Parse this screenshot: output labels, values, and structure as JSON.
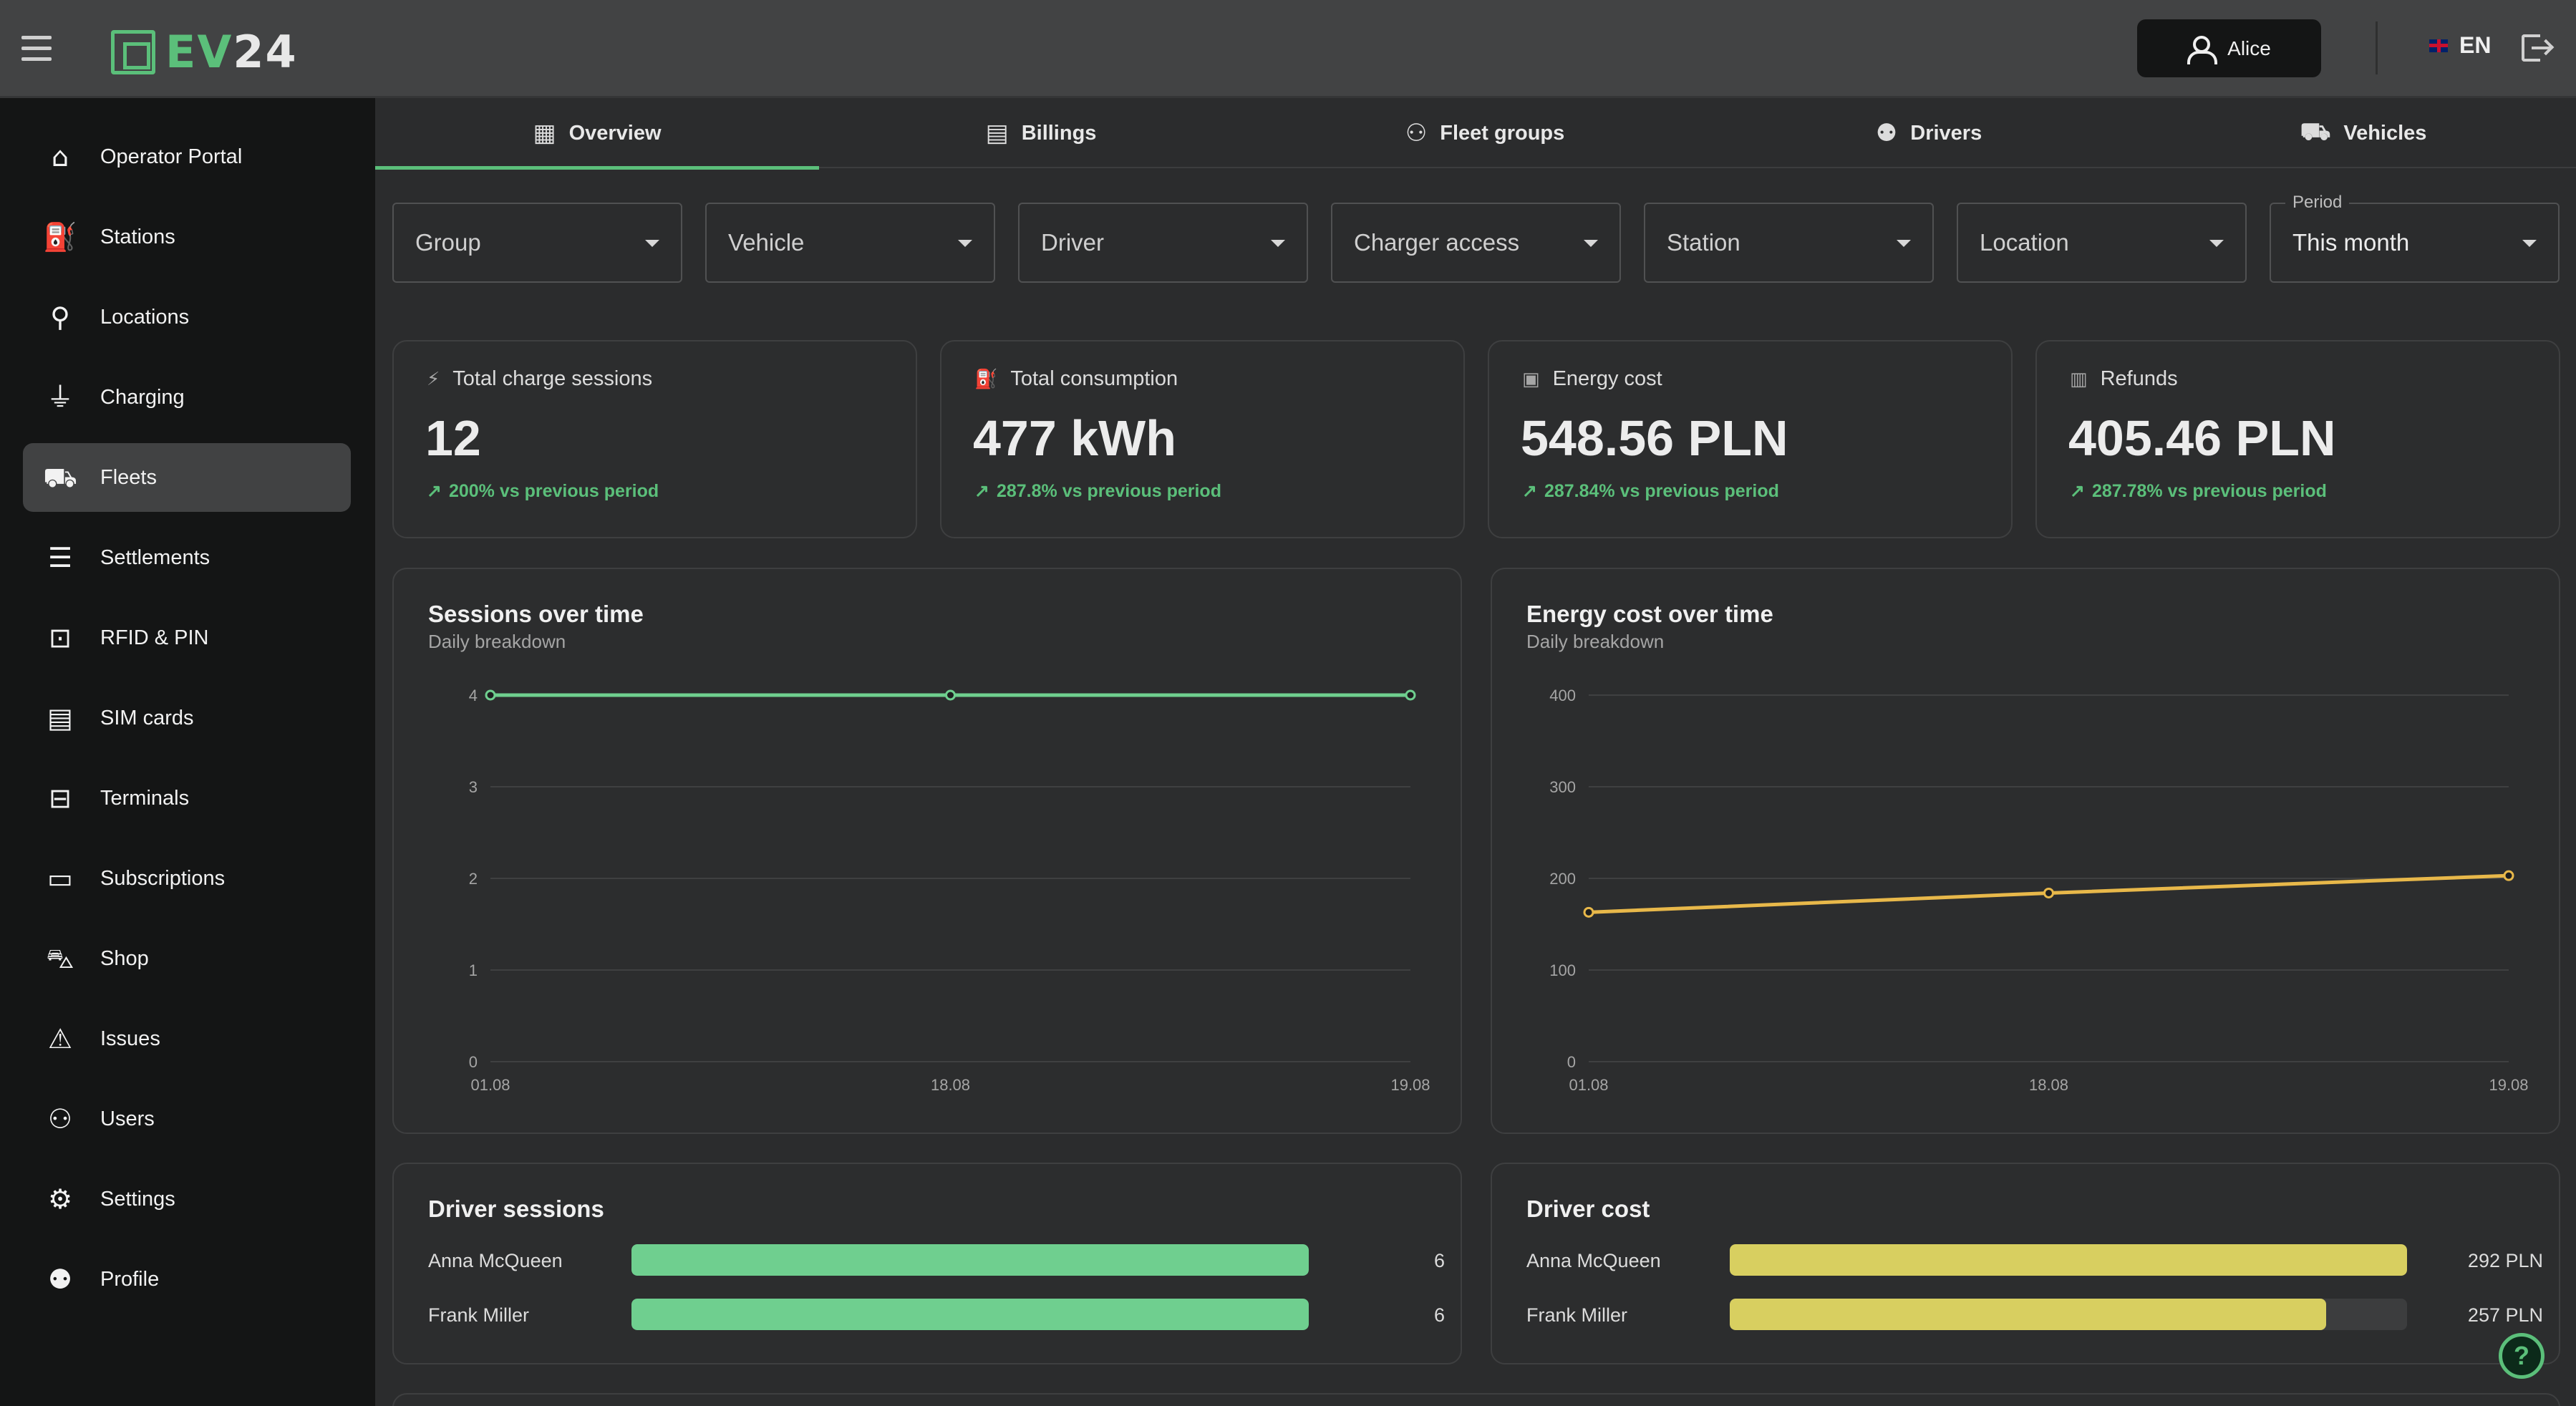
{
  "app": {
    "logo_prefix": "EV",
    "logo_suffix": "24"
  },
  "header": {
    "user_name": "Alice",
    "language": "EN"
  },
  "sidebar": {
    "items": [
      {
        "label": "Operator Portal",
        "icon": "home-icon"
      },
      {
        "label": "Stations",
        "icon": "charging-station-icon"
      },
      {
        "label": "Locations",
        "icon": "location-pin-icon"
      },
      {
        "label": "Charging",
        "icon": "plug-icon"
      },
      {
        "label": "Fleets",
        "icon": "fleet-icon",
        "active": true
      },
      {
        "label": "Settlements",
        "icon": "receipt-icon"
      },
      {
        "label": "RFID & PIN",
        "icon": "lock-icon"
      },
      {
        "label": "SIM cards",
        "icon": "sim-card-icon"
      },
      {
        "label": "Terminals",
        "icon": "terminal-icon"
      },
      {
        "label": "Subscriptions",
        "icon": "credit-card-icon"
      },
      {
        "label": "Shop",
        "icon": "cart-icon"
      },
      {
        "label": "Issues",
        "icon": "warning-icon"
      },
      {
        "label": "Users",
        "icon": "users-icon"
      },
      {
        "label": "Settings",
        "icon": "gear-icon"
      },
      {
        "label": "Profile",
        "icon": "person-icon"
      }
    ]
  },
  "tabs": [
    {
      "label": "Overview",
      "icon": "dashboard-icon",
      "active": true
    },
    {
      "label": "Billings",
      "icon": "invoice-icon"
    },
    {
      "label": "Fleet groups",
      "icon": "group-icon"
    },
    {
      "label": "Drivers",
      "icon": "person-icon"
    },
    {
      "label": "Vehicles",
      "icon": "car-icon"
    }
  ],
  "filters": {
    "group": "Group",
    "vehicle": "Vehicle",
    "driver": "Driver",
    "charger_access": "Charger access",
    "station": "Station",
    "location": "Location",
    "period_label": "Period",
    "period_value": "This month"
  },
  "stats": [
    {
      "label": "Total charge sessions",
      "value": "12",
      "trend": "200% vs previous period",
      "icon": "bolt-icon"
    },
    {
      "label": "Total consumption",
      "value": "477 kWh",
      "trend": "287.8% vs previous period",
      "icon": "fuel-icon"
    },
    {
      "label": "Energy cost",
      "value": "548.56 PLN",
      "trend": "287.84% vs previous period",
      "icon": "money-icon"
    },
    {
      "label": "Refunds",
      "value": "405.46 PLN",
      "trend": "287.78% vs previous period",
      "icon": "wallet-icon"
    }
  ],
  "colors": {
    "accent": "#5bbf7a",
    "sessions_line": "#6fcf8f",
    "cost_line": "#e8b84a",
    "cost_bar": "#d8cf60",
    "sessions_bar": "#6fcf8f"
  },
  "chart_data": [
    {
      "type": "line",
      "title": "Sessions over time",
      "subtitle": "Daily breakdown",
      "x": [
        "01.08",
        "18.08",
        "19.08"
      ],
      "series": [
        {
          "values": [
            4,
            4,
            4
          ]
        }
      ],
      "ylim": [
        0,
        4
      ],
      "yticks": [
        0,
        1,
        2,
        3,
        4
      ],
      "grid": true
    },
    {
      "type": "line",
      "title": "Energy cost over time",
      "subtitle": "Daily breakdown",
      "x": [
        "01.08",
        "18.08",
        "19.08"
      ],
      "series": [
        {
          "values": [
            163,
            184,
            203
          ]
        }
      ],
      "ylim": [
        0,
        400
      ],
      "yticks": [
        0,
        100,
        200,
        300,
        400
      ],
      "grid": true
    }
  ],
  "driver_sessions": {
    "title": "Driver sessions",
    "max": 6,
    "rows": [
      {
        "name": "Anna McQueen",
        "value": 6,
        "display": "6"
      },
      {
        "name": "Frank Miller",
        "value": 6,
        "display": "6"
      }
    ]
  },
  "driver_cost": {
    "title": "Driver cost",
    "max": 292,
    "rows": [
      {
        "name": "Anna McQueen",
        "value": 292,
        "display": "292 PLN"
      },
      {
        "name": "Frank Miller",
        "value": 257,
        "display": "257 PLN"
      }
    ]
  }
}
